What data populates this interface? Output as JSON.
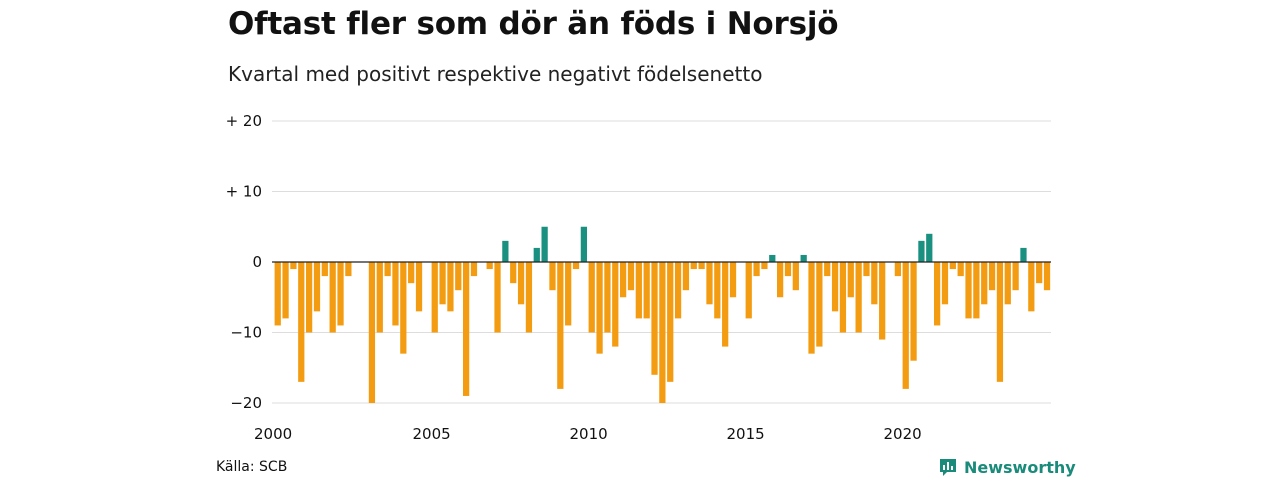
{
  "title": "Oftast fler som dör än föds i Norsjö",
  "subtitle": "Kvartal med positivt respektive negativt födelsenetto",
  "source": "Källa: SCB",
  "brand": {
    "name": "Newsworthy",
    "icon": "newsworthy-logo-icon"
  },
  "colors": {
    "positive": "#1a9080",
    "negative": "#f39c12",
    "grid": "#dddddd",
    "zero": "#222222",
    "brand": "#1a8b7a"
  },
  "chart_data": {
    "type": "bar",
    "ylim": [
      -20,
      20
    ],
    "yticks": [
      {
        "value": 20,
        "label": "+ 20"
      },
      {
        "value": 10,
        "label": "+ 10"
      },
      {
        "value": 0,
        "label": "0"
      },
      {
        "value": -10,
        "label": "−10"
      },
      {
        "value": -20,
        "label": "−20"
      }
    ],
    "xticks": [
      {
        "year": 2000,
        "label": "2000"
      },
      {
        "year": 2005,
        "label": "2005"
      },
      {
        "year": 2010,
        "label": "2010"
      },
      {
        "year": 2015,
        "label": "2015"
      },
      {
        "year": 2020,
        "label": "2020"
      }
    ],
    "grid": true,
    "start_year": 2000,
    "values": [
      -9,
      -8,
      -1,
      -17,
      -10,
      -7,
      -2,
      -10,
      -9,
      -2,
      0,
      0,
      -20,
      -10,
      -2,
      -9,
      -13,
      -3,
      -7,
      0,
      -10,
      -6,
      -7,
      -4,
      -19,
      -2,
      0,
      -1,
      -10,
      3,
      -3,
      -6,
      -10,
      2,
      5,
      -4,
      -18,
      -9,
      -1,
      5,
      -10,
      -13,
      -10,
      -12,
      -5,
      -4,
      -8,
      -8,
      -16,
      -20,
      -17,
      -8,
      -4,
      -1,
      -1,
      -6,
      -8,
      -12,
      -5,
      0,
      -8,
      -2,
      -1,
      1,
      -5,
      -2,
      -4,
      1,
      -13,
      -12,
      -2,
      -7,
      -10,
      -5,
      -10,
      -2,
      -6,
      -11,
      0,
      -2,
      -18,
      -14,
      3,
      4,
      -9,
      -6,
      -1,
      -2,
      -8,
      -8,
      -6,
      -4,
      -17,
      -6,
      -4,
      2,
      -7,
      -3,
      -4
    ]
  }
}
